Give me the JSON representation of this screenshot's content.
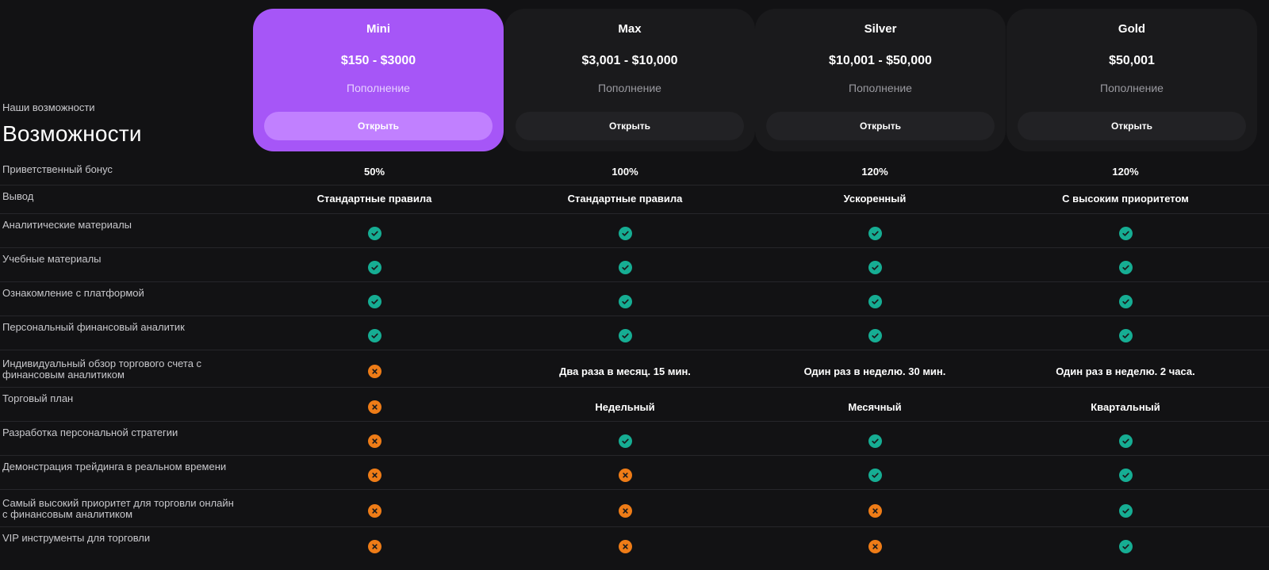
{
  "header": {
    "subtitle": "Наши возможности",
    "title": "Возможности"
  },
  "plans": [
    {
      "name": "Mini",
      "price": "$150 - $3000",
      "caption": "Пополнение",
      "button": "Открыть",
      "featured": true
    },
    {
      "name": "Max",
      "price": "$3,001 - $10,000",
      "caption": "Пополнение",
      "button": "Открыть",
      "featured": false
    },
    {
      "name": "Silver",
      "price": "$10,001 - $50,000",
      "caption": "Пополнение",
      "button": "Открыть",
      "featured": false
    },
    {
      "name": "Gold",
      "price": "$50,001",
      "caption": "Пополнение",
      "button": "Открыть",
      "featured": false
    }
  ],
  "features": [
    {
      "label": "Приветственный бонус",
      "values": [
        "50%",
        "100%",
        "120%",
        "120%"
      ]
    },
    {
      "label": "Вывод",
      "values": [
        "Стандартные правила",
        "Стандартные правила",
        "Ускоренный",
        "С высоким приоритетом"
      ]
    },
    {
      "label": "Аналитические материалы",
      "values": [
        "yes",
        "yes",
        "yes",
        "yes"
      ]
    },
    {
      "label": "Учебные материалы",
      "values": [
        "yes",
        "yes",
        "yes",
        "yes"
      ]
    },
    {
      "label": "Ознакомление с платформой",
      "values": [
        "yes",
        "yes",
        "yes",
        "yes"
      ]
    },
    {
      "label": "Персональный финансовый аналитик",
      "values": [
        "yes",
        "yes",
        "yes",
        "yes"
      ]
    },
    {
      "label": "Индивидуальный обзор торгового счета с финансовым аналитиком",
      "values": [
        "no",
        "Два раза в месяц. 15 мин.",
        "Один раз в неделю. 30 мин.",
        "Один раз в неделю. 2 часа."
      ]
    },
    {
      "label": "Торговый план",
      "values": [
        "no",
        "Недельный",
        "Месячный",
        "Квартальный"
      ]
    },
    {
      "label": "Разработка персональной стратегии",
      "values": [
        "no",
        "yes",
        "yes",
        "yes"
      ]
    },
    {
      "label": "Демонстрация трейдинга в реальном времени",
      "values": [
        "no",
        "no",
        "yes",
        "yes"
      ]
    },
    {
      "label": "Самый высокий приоритет для торговли онлайн с финансовым аналитиком",
      "values": [
        "no",
        "no",
        "no",
        "yes"
      ]
    },
    {
      "label": "VIP инструменты для торговли",
      "values": [
        "no",
        "no",
        "no",
        "yes"
      ]
    }
  ],
  "colors": {
    "background": "#121214",
    "featured_card": "#a656f7",
    "card": "#1a1a1c",
    "check": "#16ad93",
    "cross": "#ee7c17"
  },
  "icons": {
    "yes": "check-circle-icon",
    "no": "x-circle-icon"
  }
}
